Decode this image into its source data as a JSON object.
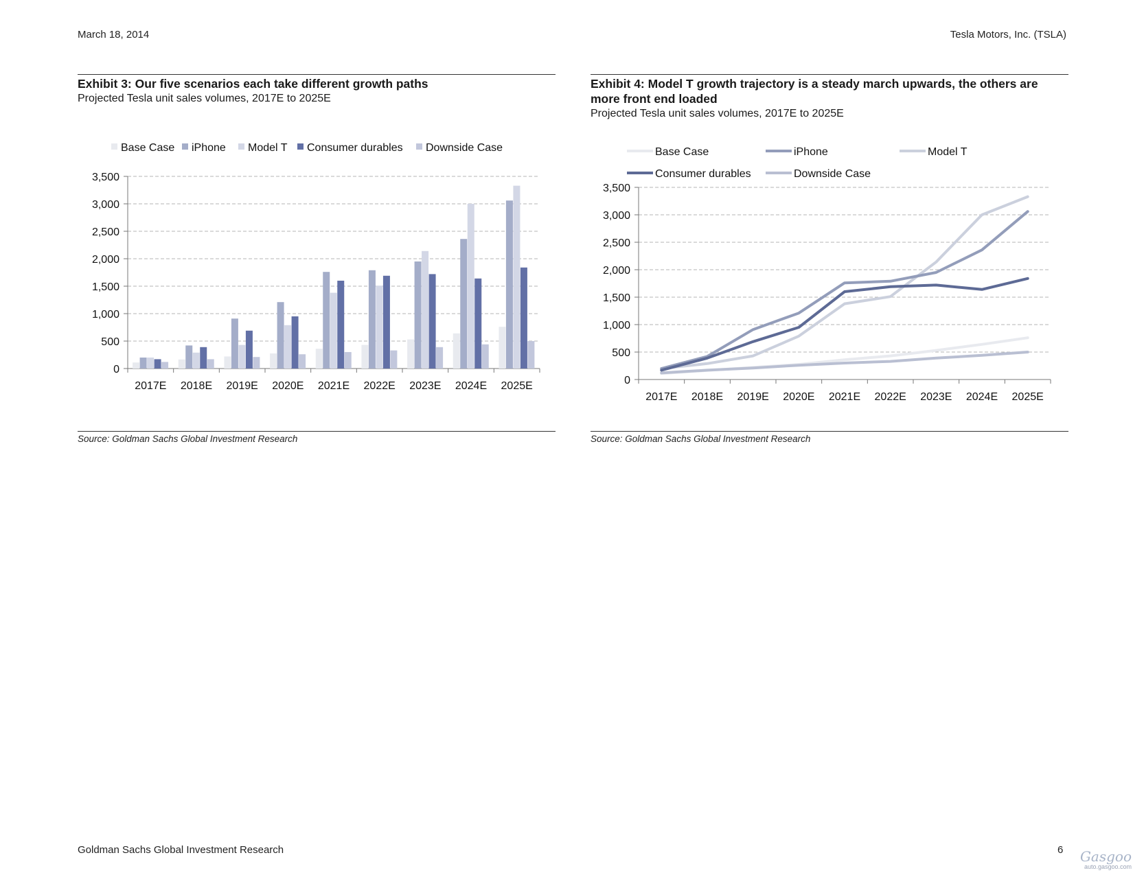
{
  "header": {
    "date": "March 18, 2014",
    "company": "Tesla Motors, Inc. (TSLA)"
  },
  "footer": {
    "publisher": "Goldman Sachs Global Investment Research",
    "page": "6"
  },
  "watermark": {
    "url": "auto.gasgoo.com"
  },
  "colors": {
    "base": "#e8eaef",
    "iphone": "#a4adc9",
    "modelt": "#d3d7e6",
    "consumer": "#6270a6",
    "downside": "#c2c7dc",
    "line_base": "#e8eaef",
    "line_iphone": "#939dba",
    "line_modelt": "#cbd0dd",
    "line_consumer": "#5d6a95",
    "line_downside": "#b9bfd2"
  },
  "exhibit3": {
    "title": "Exhibit 3: Our five scenarios each take different growth paths",
    "subtitle": "Projected Tesla unit sales volumes, 2017E to 2025E",
    "source": "Source: Goldman Sachs Global Investment Research"
  },
  "exhibit4": {
    "title": "Exhibit 4: Model T growth trajectory is a steady march upwards, the others are more front end loaded",
    "subtitle": "Projected Tesla unit sales volumes, 2017E to 2025E",
    "source": "Source: Goldman Sachs Global Investment Research"
  },
  "chart_data": [
    {
      "type": "bar",
      "categories": [
        "2017E",
        "2018E",
        "2019E",
        "2020E",
        "2021E",
        "2022E",
        "2023E",
        "2024E",
        "2025E"
      ],
      "series": [
        {
          "name": "Base Case",
          "values": [
            110,
            165,
            220,
            275,
            360,
            430,
            530,
            640,
            760
          ]
        },
        {
          "name": "iPhone",
          "values": [
            200,
            420,
            910,
            1210,
            1760,
            1790,
            1950,
            2360,
            3060
          ]
        },
        {
          "name": "Model T",
          "values": [
            200,
            290,
            430,
            790,
            1380,
            1510,
            2140,
            3000,
            3330
          ]
        },
        {
          "name": "Consumer durables",
          "values": [
            170,
            390,
            690,
            950,
            1600,
            1690,
            1720,
            1640,
            1840
          ]
        },
        {
          "name": "Downside Case",
          "values": [
            120,
            170,
            210,
            260,
            300,
            330,
            390,
            440,
            500
          ]
        }
      ],
      "yticks": [
        "0",
        "500",
        "1,000",
        "1,500",
        "2,000",
        "2,500",
        "3,000",
        "3,500"
      ],
      "ylim": [
        0,
        3500
      ],
      "grid": true,
      "legend": "top"
    },
    {
      "type": "line",
      "categories": [
        "2017E",
        "2018E",
        "2019E",
        "2020E",
        "2021E",
        "2022E",
        "2023E",
        "2024E",
        "2025E"
      ],
      "series": [
        {
          "name": "Base Case",
          "values": [
            110,
            165,
            220,
            275,
            360,
            430,
            530,
            640,
            760
          ]
        },
        {
          "name": "iPhone",
          "values": [
            200,
            420,
            910,
            1210,
            1760,
            1790,
            1950,
            2360,
            3060
          ]
        },
        {
          "name": "Model T",
          "values": [
            200,
            290,
            430,
            790,
            1380,
            1510,
            2140,
            3000,
            3330
          ]
        },
        {
          "name": "Consumer durables",
          "values": [
            170,
            390,
            690,
            950,
            1600,
            1690,
            1720,
            1640,
            1840
          ]
        },
        {
          "name": "Downside Case",
          "values": [
            120,
            170,
            210,
            260,
            300,
            330,
            390,
            440,
            500
          ]
        }
      ],
      "yticks": [
        "0",
        "500",
        "1,000",
        "1,500",
        "2,000",
        "2,500",
        "3,000",
        "3,500"
      ],
      "ylim": [
        0,
        3500
      ],
      "grid": true,
      "legend": "top"
    }
  ]
}
